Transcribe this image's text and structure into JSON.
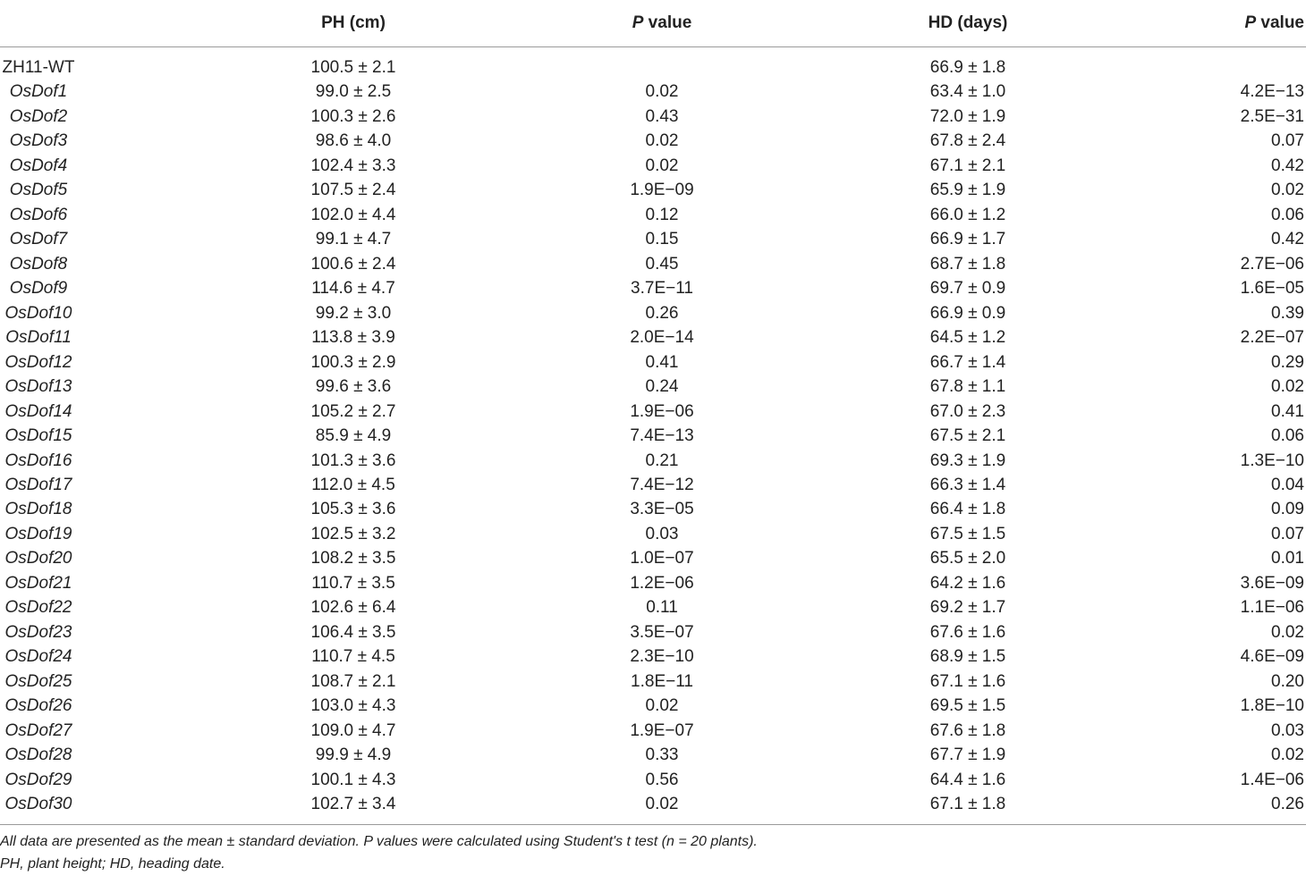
{
  "table": {
    "header": {
      "ph": "PH (cm)",
      "p1": {
        "italic": "P",
        "rest": " value"
      },
      "hd": "HD (days)",
      "p2": {
        "italic": "P",
        "rest": " value"
      }
    },
    "control": {
      "name": "ZH11-WT",
      "ph": "100.5 ± 2.1",
      "hd": "66.9 ± 1.8"
    },
    "rows": [
      [
        "OsDof1",
        "99.0 ± 2.5",
        "0.02",
        "63.4 ± 1.0",
        "4.2E−13"
      ],
      [
        "OsDof2",
        "100.3 ± 2.6",
        "0.43",
        "72.0 ± 1.9",
        "2.5E−31"
      ],
      [
        "OsDof3",
        "98.6 ± 4.0",
        "0.02",
        "67.8 ± 2.4",
        "0.07"
      ],
      [
        "OsDof4",
        "102.4 ± 3.3",
        "0.02",
        "67.1 ± 2.1",
        "0.42"
      ],
      [
        "OsDof5",
        "107.5 ± 2.4",
        "1.9E−09",
        "65.9 ± 1.9",
        "0.02"
      ],
      [
        "OsDof6",
        "102.0 ± 4.4",
        "0.12",
        "66.0 ± 1.2",
        "0.06"
      ],
      [
        "OsDof7",
        "99.1 ± 4.7",
        "0.15",
        "66.9 ± 1.7",
        "0.42"
      ],
      [
        "OsDof8",
        "100.6 ± 2.4",
        "0.45",
        "68.7 ± 1.8",
        "2.7E−06"
      ],
      [
        "OsDof9",
        "114.6 ± 4.7",
        "3.7E−11",
        "69.7 ± 0.9",
        "1.6E−05"
      ],
      [
        "OsDof10",
        "99.2 ± 3.0",
        "0.26",
        "66.9 ± 0.9",
        "0.39"
      ],
      [
        "OsDof11",
        "113.8 ± 3.9",
        "2.0E−14",
        "64.5 ± 1.2",
        "2.2E−07"
      ],
      [
        "OsDof12",
        "100.3 ± 2.9",
        "0.41",
        "66.7 ± 1.4",
        "0.29"
      ],
      [
        "OsDof13",
        "99.6 ± 3.6",
        "0.24",
        "67.8 ± 1.1",
        "0.02"
      ],
      [
        "OsDof14",
        "105.2 ± 2.7",
        "1.9E−06",
        "67.0 ± 2.3",
        "0.41"
      ],
      [
        "OsDof15",
        "85.9 ± 4.9",
        "7.4E−13",
        "67.5 ± 2.1",
        "0.06"
      ],
      [
        "OsDof16",
        "101.3 ± 3.6",
        "0.21",
        "69.3 ± 1.9",
        "1.3E−10"
      ],
      [
        "OsDof17",
        "112.0 ± 4.5",
        "7.4E−12",
        "66.3 ± 1.4",
        "0.04"
      ],
      [
        "OsDof18",
        "105.3 ± 3.6",
        "3.3E−05",
        "66.4 ± 1.8",
        "0.09"
      ],
      [
        "OsDof19",
        "102.5 ± 3.2",
        "0.03",
        "67.5 ± 1.5",
        "0.07"
      ],
      [
        "OsDof20",
        "108.2 ± 3.5",
        "1.0E−07",
        "65.5 ± 2.0",
        "0.01"
      ],
      [
        "OsDof21",
        "110.7 ± 3.5",
        "1.2E−06",
        "64.2 ± 1.6",
        "3.6E−09"
      ],
      [
        "OsDof22",
        "102.6 ± 6.4",
        "0.11",
        "69.2 ± 1.7",
        "1.1E−06"
      ],
      [
        "OsDof23",
        "106.4 ± 3.5",
        "3.5E−07",
        "67.6 ± 1.6",
        "0.02"
      ],
      [
        "OsDof24",
        "110.7 ± 4.5",
        "2.3E−10",
        "68.9 ± 1.5",
        "4.6E−09"
      ],
      [
        "OsDof25",
        "108.7 ± 2.1",
        "1.8E−11",
        "67.1 ± 1.6",
        "0.20"
      ],
      [
        "OsDof26",
        "103.0 ± 4.3",
        "0.02",
        "69.5 ± 1.5",
        "1.8E−10"
      ],
      [
        "OsDof27",
        "109.0 ± 4.7",
        "1.9E−07",
        "67.6 ± 1.8",
        "0.03"
      ],
      [
        "OsDof28",
        "99.9 ± 4.9",
        "0.33",
        "67.7 ± 1.9",
        "0.02"
      ],
      [
        "OsDof29",
        "100.1 ± 4.3",
        "0.56",
        "64.4 ± 1.6",
        "1.4E−06"
      ],
      [
        "OsDof30",
        "102.7 ± 3.4",
        "0.02",
        "67.1 ± 1.8",
        "0.26"
      ]
    ],
    "footnotes": [
      "All data are presented as the mean ± standard deviation. P values were calculated using Student's t test (n = 20 plants).",
      "PH, plant height; HD, heading date."
    ]
  }
}
